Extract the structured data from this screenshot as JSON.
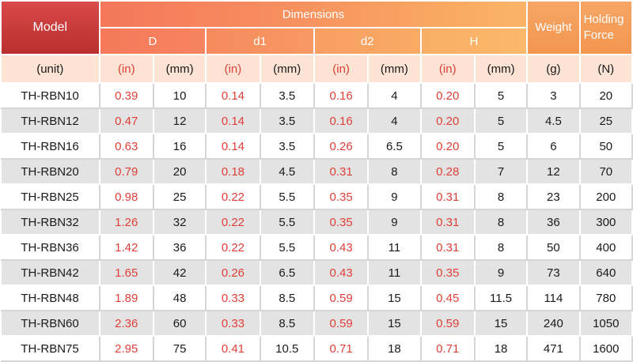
{
  "headers": {
    "model": "Model",
    "dimensions": "Dimensions",
    "d": "D",
    "d1": "d1",
    "d2": "d2",
    "h": "H",
    "weight": "Weight",
    "holding_force_line1": "Holding",
    "holding_force_line2": "Force"
  },
  "units": [
    "(unit)",
    "(in)",
    "(mm)",
    "(in)",
    "(mm)",
    "(in)",
    "(mm)",
    "(in)",
    "(mm)",
    "(g)",
    "(N)"
  ],
  "colors": {
    "header_red": "#c93a3a",
    "header_orange_start": "#f4785a",
    "header_orange_end": "#f9b66c",
    "unit_row_bg": "#fce3d4",
    "inch_text": "#e0403a",
    "stripe_gray": "#e3e3e3"
  },
  "rows": [
    [
      "TH-RBN10",
      "0.39",
      "10",
      "0.14",
      "3.5",
      "0.16",
      "4",
      "0.20",
      "5",
      "3",
      "20"
    ],
    [
      "TH-RBN12",
      "0.47",
      "12",
      "0.14",
      "3.5",
      "0.16",
      "4",
      "0.20",
      "5",
      "4.5",
      "25"
    ],
    [
      "TH-RBN16",
      "0.63",
      "16",
      "0.14",
      "3.5",
      "0.26",
      "6.5",
      "0.20",
      "5",
      "6",
      "50"
    ],
    [
      "TH-RBN20",
      "0.79",
      "20",
      "0.18",
      "4.5",
      "0.31",
      "8",
      "0.28",
      "7",
      "12",
      "70"
    ],
    [
      "TH-RBN25",
      "0.98",
      "25",
      "0.22",
      "5.5",
      "0.35",
      "9",
      "0.31",
      "8",
      "23",
      "200"
    ],
    [
      "TH-RBN32",
      "1.26",
      "32",
      "0.22",
      "5.5",
      "0.35",
      "9",
      "0.31",
      "8",
      "36",
      "300"
    ],
    [
      "TH-RBN36",
      "1.42",
      "36",
      "0.22",
      "5.5",
      "0.43",
      "11",
      "0.31",
      "8",
      "50",
      "400"
    ],
    [
      "TH-RBN42",
      "1.65",
      "42",
      "0.26",
      "6.5",
      "0.43",
      "11",
      "0.35",
      "9",
      "73",
      "640"
    ],
    [
      "TH-RBN48",
      "1.89",
      "48",
      "0.33",
      "8.5",
      "0.59",
      "15",
      "0.45",
      "11.5",
      "114",
      "780"
    ],
    [
      "TH-RBN60",
      "2.36",
      "60",
      "0.33",
      "8.5",
      "0.59",
      "15",
      "0.59",
      "15",
      "240",
      "1050"
    ],
    [
      "TH-RBN75",
      "2.95",
      "75",
      "0.41",
      "10.5",
      "0.71",
      "18",
      "0.71",
      "18",
      "471",
      "1600"
    ]
  ]
}
